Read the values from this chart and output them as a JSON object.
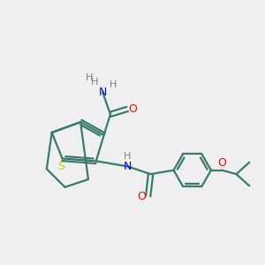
{
  "background_color": "#efefef",
  "bond_color": "#3a7a6a",
  "sulfur_color": "#cccc00",
  "nitrogen_color": "#0000ff",
  "oxygen_color": "#ff0000",
  "carbon_color": "#3a7a6a",
  "h_color": "#808080",
  "line_width": 1.6,
  "figsize": [
    3.0,
    3.0
  ],
  "dpi": 100,
  "xlim": [
    0,
    10
  ],
  "ylim": [
    0,
    10
  ]
}
